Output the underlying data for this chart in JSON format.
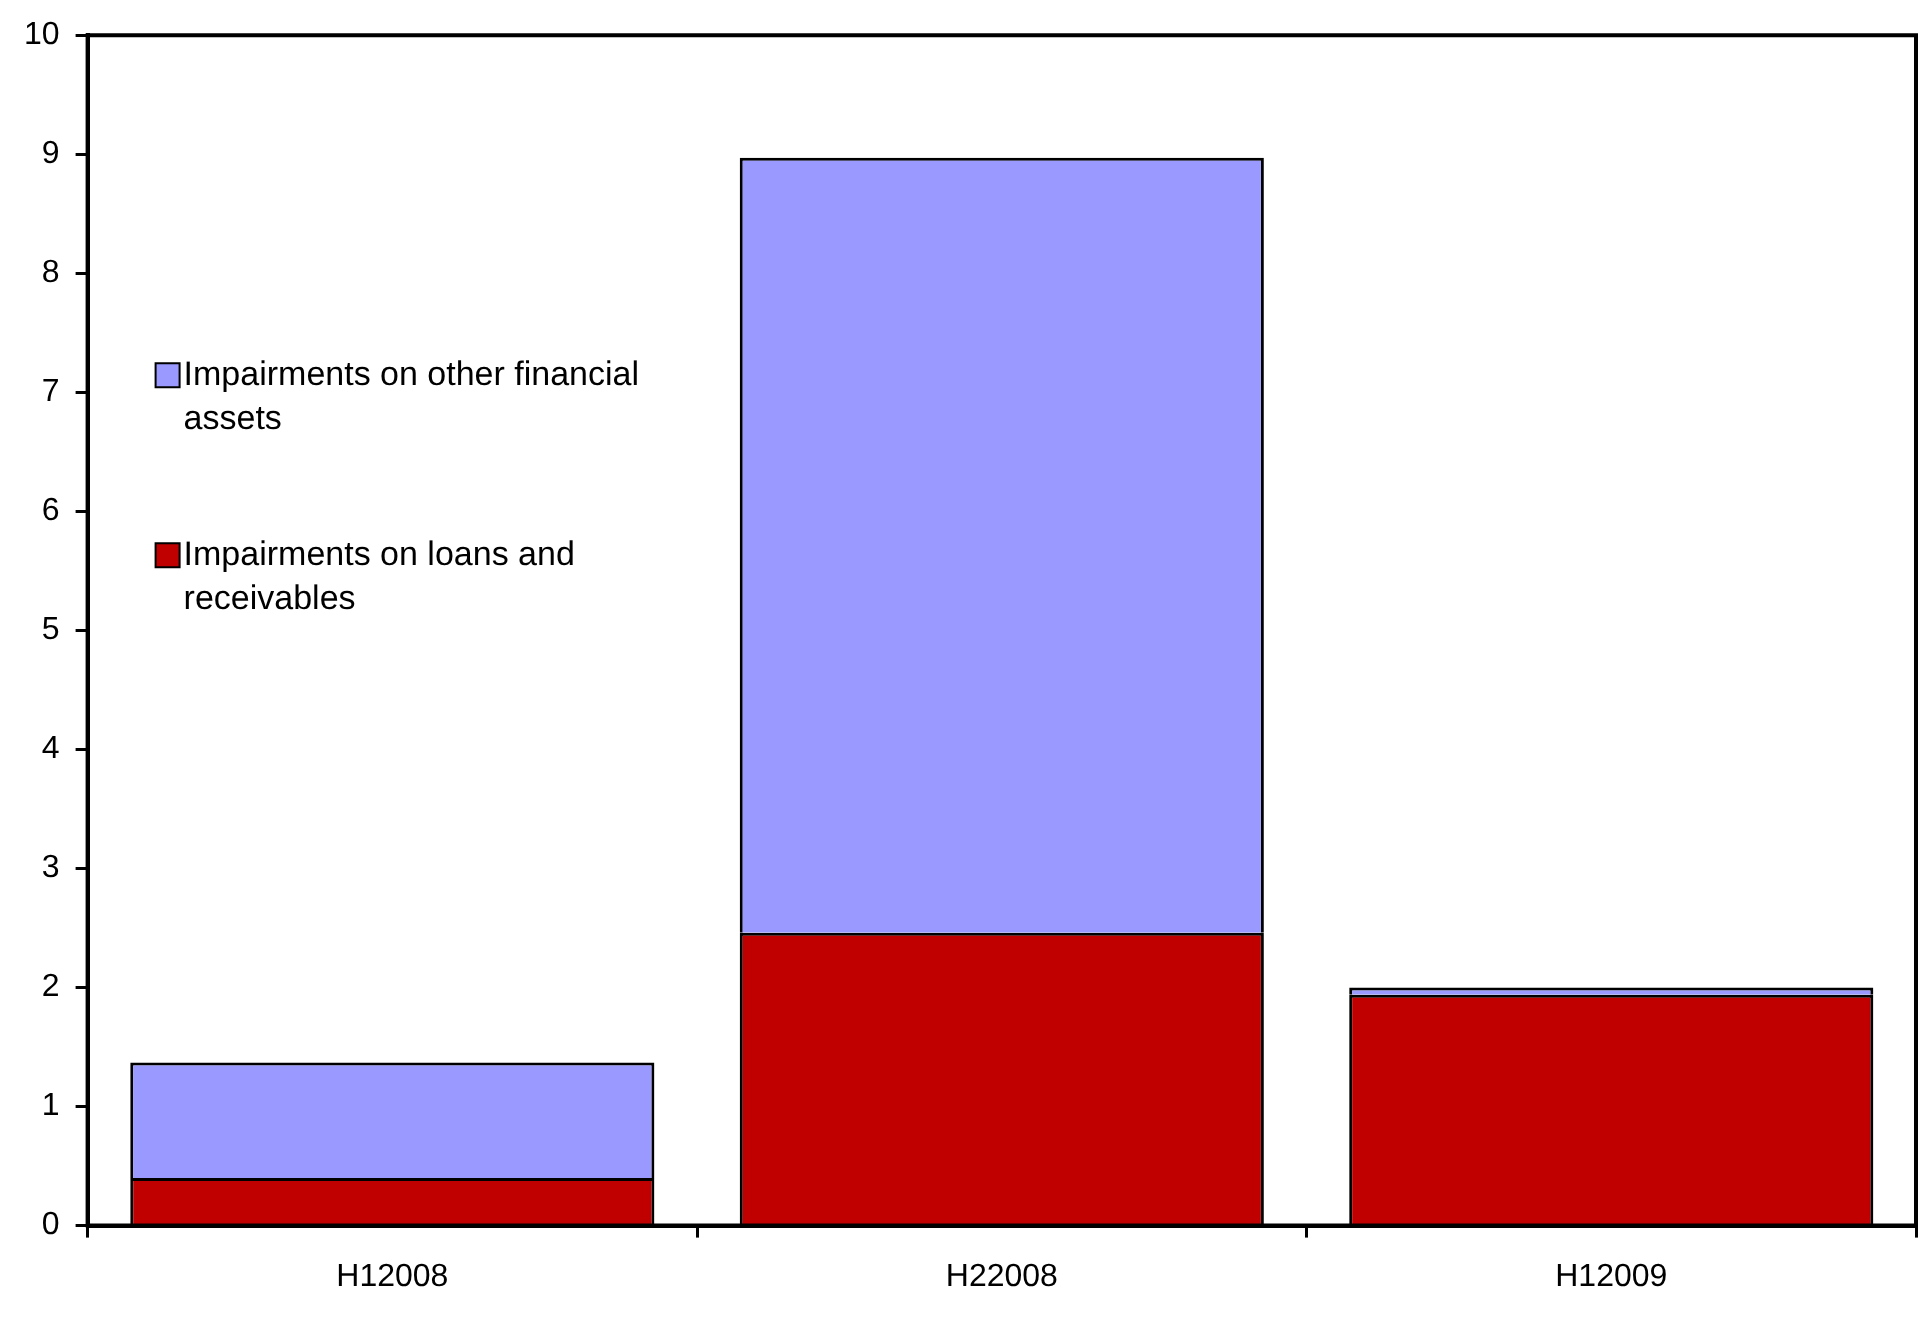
{
  "chart_data": {
    "type": "bar",
    "stacked": true,
    "categories": [
      "H12008",
      "H22008",
      "H12009"
    ],
    "series": [
      {
        "name": "Impairments on loans and receivables",
        "color": "#c00000",
        "values": [
          0.4,
          2.46,
          1.94
        ]
      },
      {
        "name": "Impairments on other financial assets",
        "color": "#9999ff",
        "values": [
          0.97,
          6.51,
          0.06
        ]
      }
    ],
    "ylim": [
      0,
      10
    ],
    "yticks": [
      0,
      1,
      2,
      3,
      4,
      5,
      6,
      7,
      8,
      9,
      10
    ],
    "grid": false,
    "legend": "left"
  }
}
